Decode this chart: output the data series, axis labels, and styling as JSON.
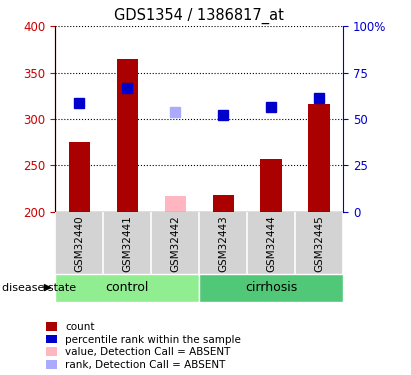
{
  "title": "GDS1354 / 1386817_at",
  "samples": [
    "GSM32440",
    "GSM32441",
    "GSM32442",
    "GSM32443",
    "GSM32444",
    "GSM32445"
  ],
  "groups": [
    {
      "name": "control",
      "color": "#90EE90",
      "start": 0,
      "end": 3
    },
    {
      "name": "cirrhosis",
      "color": "#50C878",
      "start": 3,
      "end": 6
    }
  ],
  "bar_values": [
    275,
    365,
    217,
    218,
    257,
    316
  ],
  "bar_absent": [
    false,
    false,
    true,
    false,
    false,
    false
  ],
  "bar_color_present": "#AA0000",
  "bar_color_absent": "#FFB6C1",
  "rank_values": [
    317,
    333,
    308,
    304,
    313,
    323
  ],
  "rank_absent": [
    false,
    false,
    true,
    false,
    false,
    false
  ],
  "rank_color_present": "#0000CC",
  "rank_color_absent": "#AAAAFF",
  "ymin": 200,
  "ymax": 400,
  "yticks": [
    200,
    250,
    300,
    350,
    400
  ],
  "y2min": 0,
  "y2max": 100,
  "y2ticks": [
    0,
    25,
    50,
    75,
    100
  ],
  "y2ticklabels": [
    "0",
    "25",
    "50",
    "75",
    "100%"
  ],
  "ylabel_color_left": "#CC0000",
  "ylabel_color_right": "#0000CC",
  "disease_state_label": "disease state",
  "legend_items": [
    {
      "color": "#AA0000",
      "label": "count"
    },
    {
      "color": "#0000CC",
      "label": "percentile rank within the sample"
    },
    {
      "color": "#FFB6C1",
      "label": "value, Detection Call = ABSENT"
    },
    {
      "color": "#AAAAFF",
      "label": "rank, Detection Call = ABSENT"
    }
  ],
  "marker_size": 7,
  "bar_width": 0.45,
  "tick_area_bg": "#D3D3D3"
}
